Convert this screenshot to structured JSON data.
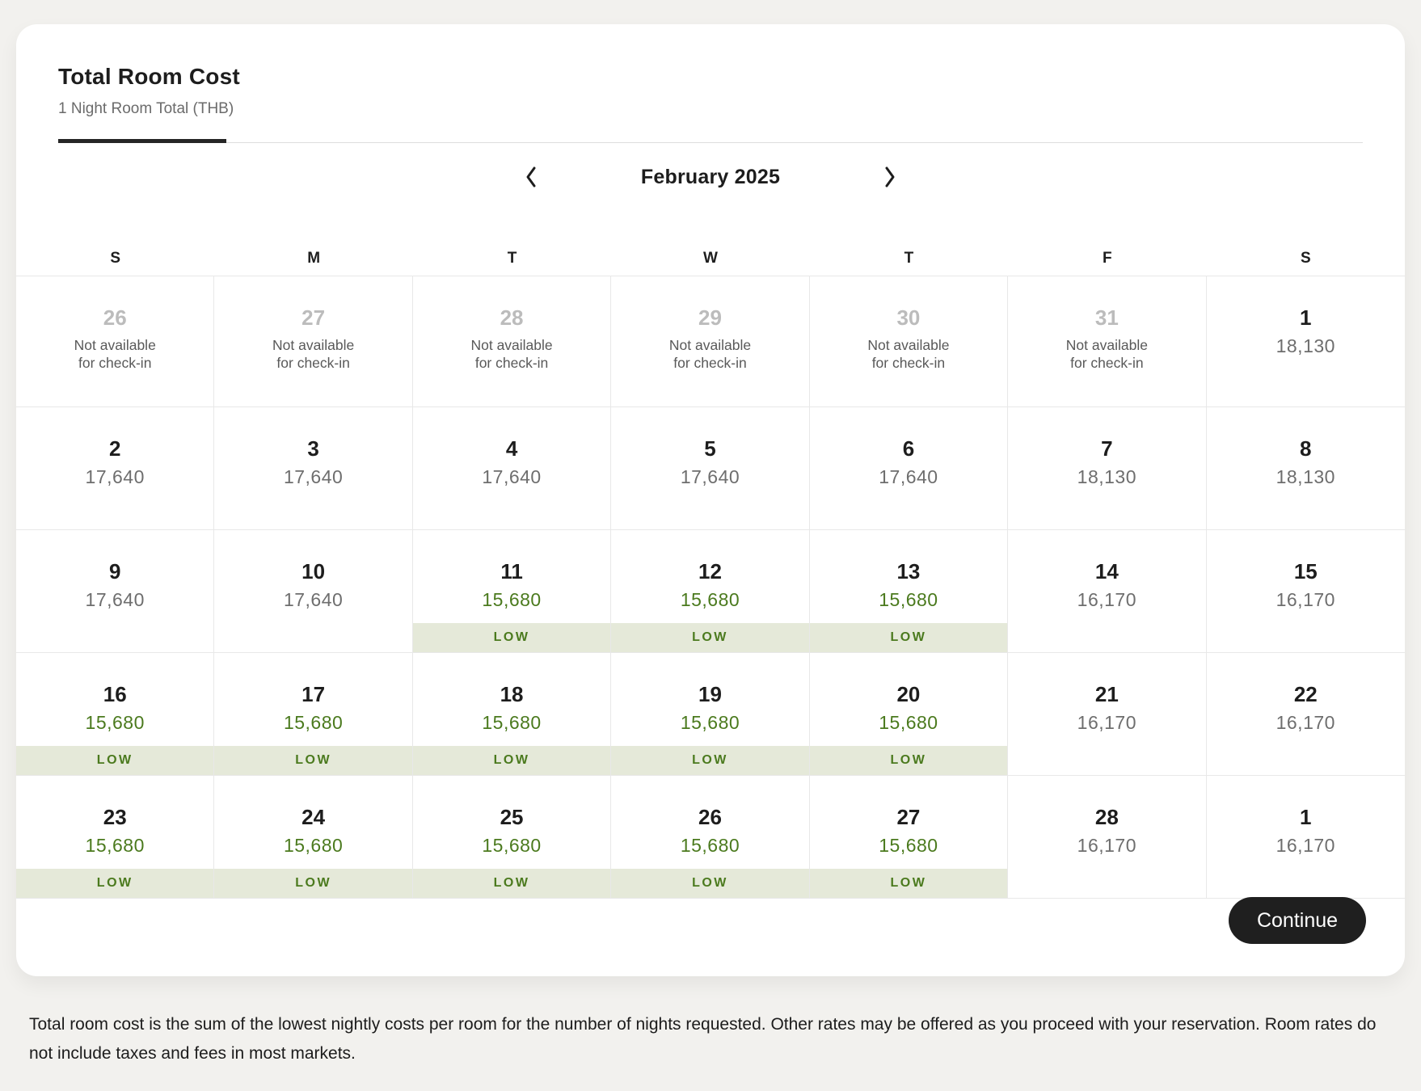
{
  "panel": {
    "title": "Total Room Cost",
    "subtitle": "1 Night Room Total (THB)"
  },
  "calendar": {
    "month_label": "February 2025",
    "day_headers": [
      "S",
      "M",
      "T",
      "W",
      "T",
      "F",
      "S"
    ],
    "not_available_line1": "Not available",
    "not_available_line2": "for check-in",
    "low_label": "LOW",
    "weeks": [
      [
        {
          "day": "26",
          "unavailable": true
        },
        {
          "day": "27",
          "unavailable": true
        },
        {
          "day": "28",
          "unavailable": true
        },
        {
          "day": "29",
          "unavailable": true
        },
        {
          "day": "30",
          "unavailable": true
        },
        {
          "day": "31",
          "unavailable": true
        },
        {
          "day": "1",
          "price": "18,130"
        }
      ],
      [
        {
          "day": "2",
          "price": "17,640"
        },
        {
          "day": "3",
          "price": "17,640"
        },
        {
          "day": "4",
          "price": "17,640"
        },
        {
          "day": "5",
          "price": "17,640"
        },
        {
          "day": "6",
          "price": "17,640"
        },
        {
          "day": "7",
          "price": "18,130"
        },
        {
          "day": "8",
          "price": "18,130"
        }
      ],
      [
        {
          "day": "9",
          "price": "17,640"
        },
        {
          "day": "10",
          "price": "17,640"
        },
        {
          "day": "11",
          "price": "15,680",
          "low": true
        },
        {
          "day": "12",
          "price": "15,680",
          "low": true
        },
        {
          "day": "13",
          "price": "15,680",
          "low": true
        },
        {
          "day": "14",
          "price": "16,170"
        },
        {
          "day": "15",
          "price": "16,170"
        }
      ],
      [
        {
          "day": "16",
          "price": "15,680",
          "low": true
        },
        {
          "day": "17",
          "price": "15,680",
          "low": true
        },
        {
          "day": "18",
          "price": "15,680",
          "low": true
        },
        {
          "day": "19",
          "price": "15,680",
          "low": true
        },
        {
          "day": "20",
          "price": "15,680",
          "low": true
        },
        {
          "day": "21",
          "price": "16,170"
        },
        {
          "day": "22",
          "price": "16,170"
        }
      ],
      [
        {
          "day": "23",
          "price": "15,680",
          "low": true
        },
        {
          "day": "24",
          "price": "15,680",
          "low": true
        },
        {
          "day": "25",
          "price": "15,680",
          "low": true
        },
        {
          "day": "26",
          "price": "15,680",
          "low": true
        },
        {
          "day": "27",
          "price": "15,680",
          "low": true
        },
        {
          "day": "28",
          "price": "16,170"
        },
        {
          "day": "1",
          "price": "16,170"
        }
      ]
    ]
  },
  "icons": {
    "prev": "chevron-left",
    "next": "chevron-right"
  },
  "actions": {
    "continue_label": "Continue"
  },
  "footer": {
    "text": "Total room cost is the sum of the lowest nightly costs per room for the number of nights requested. Other rates may be offered as you proceed with your reservation. Room rates do not include taxes and fees in most markets."
  },
  "colors": {
    "accent_green": "#4b7a1e",
    "low_badge_bg": "#e5e9d9",
    "price_gray": "#6e6e6e",
    "disabled_day": "#bcbcbc",
    "na_text": "#595959",
    "grid_border": "#e8e8e8",
    "page_bg": "#f2f1ee",
    "card_bg": "#ffffff",
    "button_bg": "#1f1f1f",
    "button_text": "#ffffff",
    "text_dark": "#1d1d1d"
  }
}
